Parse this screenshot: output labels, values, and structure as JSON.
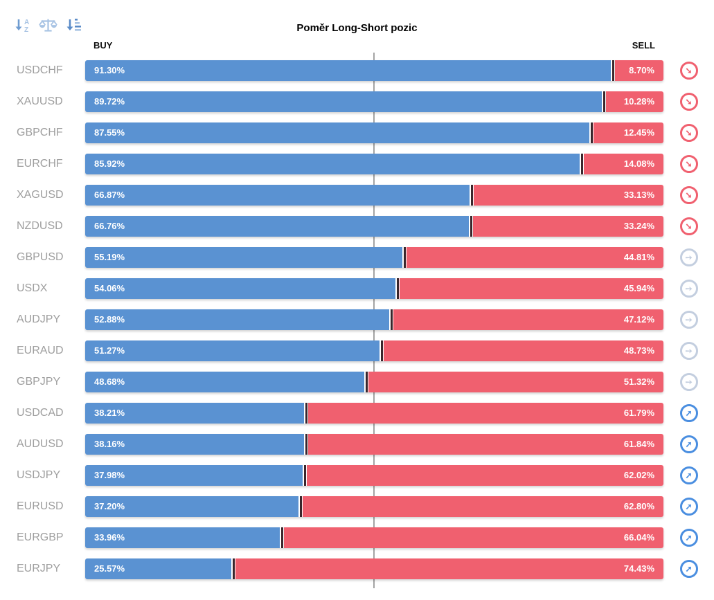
{
  "title": "Poměr Long-Short pozic",
  "headers": {
    "buy": "BUY",
    "sell": "SELL"
  },
  "toolbar": {
    "icons": [
      {
        "name": "sort-alphabetical-icon"
      },
      {
        "name": "balance-scale-icon"
      },
      {
        "name": "sort-amount-icon"
      }
    ]
  },
  "colors": {
    "buy_bar": "#5a92d2",
    "sell_bar": "#f0606f",
    "segment_divider": "#3a262c",
    "center_line": "#a3a3a3",
    "pair_label": "#9e9e9e",
    "trend_down": "#f0606f",
    "trend_flat": "#c3cedf",
    "trend_up": "#4a8ee0"
  },
  "trend_glyphs": {
    "down": "➘",
    "flat": "➙",
    "up": "➚"
  },
  "rows": [
    {
      "pair": "USDCHF",
      "buy": 91.3,
      "sell": 8.7,
      "buy_label": "91.30%",
      "sell_label": "8.70%",
      "trend": "down"
    },
    {
      "pair": "XAUUSD",
      "buy": 89.72,
      "sell": 10.28,
      "buy_label": "89.72%",
      "sell_label": "10.28%",
      "trend": "down"
    },
    {
      "pair": "GBPCHF",
      "buy": 87.55,
      "sell": 12.45,
      "buy_label": "87.55%",
      "sell_label": "12.45%",
      "trend": "down"
    },
    {
      "pair": "EURCHF",
      "buy": 85.92,
      "sell": 14.08,
      "buy_label": "85.92%",
      "sell_label": "14.08%",
      "trend": "down"
    },
    {
      "pair": "XAGUSD",
      "buy": 66.87,
      "sell": 33.13,
      "buy_label": "66.87%",
      "sell_label": "33.13%",
      "trend": "down"
    },
    {
      "pair": "NZDUSD",
      "buy": 66.76,
      "sell": 33.24,
      "buy_label": "66.76%",
      "sell_label": "33.24%",
      "trend": "down"
    },
    {
      "pair": "GBPUSD",
      "buy": 55.19,
      "sell": 44.81,
      "buy_label": "55.19%",
      "sell_label": "44.81%",
      "trend": "flat"
    },
    {
      "pair": "USDX",
      "buy": 54.06,
      "sell": 45.94,
      "buy_label": "54.06%",
      "sell_label": "45.94%",
      "trend": "flat"
    },
    {
      "pair": "AUDJPY",
      "buy": 52.88,
      "sell": 47.12,
      "buy_label": "52.88%",
      "sell_label": "47.12%",
      "trend": "flat"
    },
    {
      "pair": "EURAUD",
      "buy": 51.27,
      "sell": 48.73,
      "buy_label": "51.27%",
      "sell_label": "48.73%",
      "trend": "flat"
    },
    {
      "pair": "GBPJPY",
      "buy": 48.68,
      "sell": 51.32,
      "buy_label": "48.68%",
      "sell_label": "51.32%",
      "trend": "flat"
    },
    {
      "pair": "USDCAD",
      "buy": 38.21,
      "sell": 61.79,
      "buy_label": "38.21%",
      "sell_label": "61.79%",
      "trend": "up"
    },
    {
      "pair": "AUDUSD",
      "buy": 38.16,
      "sell": 61.84,
      "buy_label": "38.16%",
      "sell_label": "61.84%",
      "trend": "up"
    },
    {
      "pair": "USDJPY",
      "buy": 37.98,
      "sell": 62.02,
      "buy_label": "37.98%",
      "sell_label": "62.02%",
      "trend": "up"
    },
    {
      "pair": "EURUSD",
      "buy": 37.2,
      "sell": 62.8,
      "buy_label": "37.20%",
      "sell_label": "62.80%",
      "trend": "up"
    },
    {
      "pair": "EURGBP",
      "buy": 33.96,
      "sell": 66.04,
      "buy_label": "33.96%",
      "sell_label": "66.04%",
      "trend": "up"
    },
    {
      "pair": "EURJPY",
      "buy": 25.57,
      "sell": 74.43,
      "buy_label": "25.57%",
      "sell_label": "74.43%",
      "trend": "up"
    }
  ],
  "chart_data": {
    "type": "bar",
    "orientation": "horizontal",
    "stacked": true,
    "title": "Poměr Long-Short pozic",
    "categories": [
      "USDCHF",
      "XAUUSD",
      "GBPCHF",
      "EURCHF",
      "XAGUSD",
      "NZDUSD",
      "GBPUSD",
      "USDX",
      "AUDJPY",
      "EURAUD",
      "GBPJPY",
      "USDCAD",
      "AUDUSD",
      "USDJPY",
      "EURUSD",
      "EURGBP",
      "EURJPY"
    ],
    "series": [
      {
        "name": "BUY",
        "color": "#5a92d2",
        "values": [
          91.3,
          89.72,
          87.55,
          85.92,
          66.87,
          66.76,
          55.19,
          54.06,
          52.88,
          51.27,
          48.68,
          38.21,
          38.16,
          37.98,
          37.2,
          33.96,
          25.57
        ]
      },
      {
        "name": "SELL",
        "color": "#f0606f",
        "values": [
          8.7,
          10.28,
          12.45,
          14.08,
          33.13,
          33.24,
          44.81,
          45.94,
          47.12,
          48.73,
          51.32,
          61.79,
          61.84,
          62.02,
          62.8,
          66.04,
          74.43
        ]
      }
    ],
    "xlim": [
      0,
      100
    ],
    "center_reference_line": 50,
    "grid": false,
    "legend_position": "column-headers (BUY left, SELL right)",
    "annotations": "trend icons per row: down-arrow (red) for buy>60%, right-arrow (gray) for ~50%, up-arrow (blue) for buy<40%"
  }
}
